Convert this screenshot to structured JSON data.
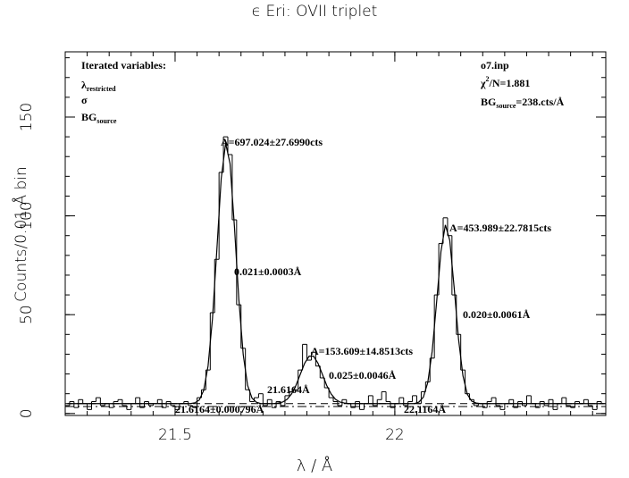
{
  "chart_data": {
    "type": "histogram",
    "title": "ϵ Eri: OVII triplet",
    "x_label": "λ / Å",
    "y_label": "Counts/0.01 Å bin",
    "bins": [
      21.25,
      21.26,
      21.27,
      21.28,
      21.29,
      21.3,
      21.31,
      21.32,
      21.33,
      21.34,
      21.35,
      21.36,
      21.37,
      21.38,
      21.39,
      21.4,
      21.41,
      21.42,
      21.43,
      21.44,
      21.45,
      21.46,
      21.47,
      21.48,
      21.49,
      21.5,
      21.51,
      21.52,
      21.53,
      21.54,
      21.55,
      21.56,
      21.57,
      21.58,
      21.59,
      21.6,
      21.61,
      21.62,
      21.63,
      21.64,
      21.65,
      21.66,
      21.67,
      21.68,
      21.69,
      21.7,
      21.71,
      21.72,
      21.73,
      21.74,
      21.75,
      21.76,
      21.77,
      21.78,
      21.79,
      21.8,
      21.81,
      21.82,
      21.83,
      21.84,
      21.85,
      21.86,
      21.87,
      21.88,
      21.89,
      21.9,
      21.91,
      21.92,
      21.93,
      21.94,
      21.95,
      21.96,
      21.97,
      21.98,
      21.99,
      22,
      22.01,
      22.02,
      22.03,
      22.04,
      22.05,
      22.06,
      22.07,
      22.08,
      22.09,
      22.1,
      22.11,
      22.12,
      22.13,
      22.14,
      22.15,
      22.16,
      22.17,
      22.18,
      22.19,
      22.2,
      22.21,
      22.22,
      22.23,
      22.24,
      22.25,
      22.26,
      22.27,
      22.28,
      22.29,
      22.3,
      22.31,
      22.32,
      22.33,
      22.34,
      22.35,
      22.36,
      22.37,
      22.38,
      22.39,
      22.4,
      22.41,
      22.42,
      22.43,
      22.44,
      22.45,
      22.46,
      22.47,
      22.48
    ],
    "counts": [
      4,
      6,
      3,
      7,
      5,
      2,
      6,
      8,
      4,
      5,
      3,
      6,
      7,
      4,
      2,
      5,
      8,
      3,
      6,
      4,
      5,
      7,
      3,
      6,
      4,
      2,
      5,
      6,
      4,
      3,
      8,
      12,
      22,
      51,
      78,
      122,
      140,
      131,
      98,
      55,
      33,
      12,
      6,
      8,
      10,
      4,
      7,
      3,
      6,
      4,
      9,
      11,
      12,
      22,
      35,
      27,
      31,
      24,
      18,
      13,
      8,
      6,
      4,
      7,
      5,
      3,
      6,
      2,
      5,
      9,
      4,
      7,
      11,
      6,
      3,
      5,
      8,
      4,
      6,
      9,
      5,
      11,
      16,
      28,
      60,
      86,
      99,
      90,
      60,
      40,
      22,
      10,
      7,
      4,
      5,
      3,
      6,
      8,
      4,
      2,
      5,
      7,
      3,
      6,
      4,
      9,
      5,
      3,
      6,
      4,
      7,
      2,
      5,
      8,
      4,
      3,
      6,
      5,
      7,
      4,
      2,
      6,
      5
    ],
    "model": [
      5,
      5,
      5,
      5,
      5,
      5,
      5,
      5,
      5,
      5,
      5,
      5,
      5,
      5,
      5,
      5,
      5,
      5,
      5,
      5,
      5,
      5,
      5,
      5,
      5,
      5,
      5,
      5,
      5,
      5.4,
      6.8,
      11.6,
      24,
      47.8,
      82.8,
      119,
      136.7,
      126.5,
      94.7,
      57.9,
      29.8,
      14.2,
      7.8,
      5.7,
      5,
      5,
      5,
      5,
      5.3,
      5.8,
      7.2,
      9.9,
      14.2,
      19.9,
      25.5,
      29,
      29,
      25.5,
      19.9,
      14.2,
      9.9,
      7.2,
      5.8,
      5.3,
      5,
      5,
      5,
      5,
      5,
      5,
      5,
      5,
      5,
      5,
      5,
      5,
      5,
      5,
      5,
      5,
      5.8,
      8.3,
      15.7,
      31.5,
      56.1,
      82,
      95.4,
      87.6,
      63.8,
      37.6,
      19.1,
      9.7,
      6.2,
      5.3,
      5,
      5,
      5,
      5,
      5,
      5,
      5,
      5,
      5,
      5,
      5,
      5,
      5,
      5,
      5,
      5,
      5,
      5,
      5,
      5,
      5,
      5,
      5,
      5,
      5,
      5,
      5,
      5,
      5
    ],
    "color": "#000000",
    "xlim": [
      21.25,
      22.48
    ],
    "ylim": [
      -1,
      183
    ],
    "xticks": [
      21.5,
      22
    ],
    "yticks": [
      0,
      50,
      100,
      150
    ],
    "x_minor_step": 0.05,
    "y_minor_step": 10,
    "background_lines": [
      {
        "value": 5,
        "style": "dashed"
      },
      {
        "value": 3.5,
        "style": "dashdot"
      }
    ],
    "info_left": [
      {
        "text": "Iterated variables:"
      },
      {
        "text": "λ",
        "sub": "restricted"
      },
      {
        "text": "σ"
      },
      {
        "text": "BG",
        "sub": "source"
      }
    ],
    "info_right": [
      {
        "text": "o7.inp"
      },
      {
        "text": "χ",
        "sup": "2",
        "rest": "/N=1.881"
      },
      {
        "text": "BG",
        "sub": "source",
        "rest": "=238.cts/Å"
      }
    ],
    "annotations": [
      "A=697.024±27.6990cts",
      "0.021±0.0003Å",
      "A=153.609±14.8513cts",
      "0.025±0.0046Å",
      "A=453.989±22.7815cts",
      "0.020±0.0061Å",
      "21.6164Å",
      "21.6164±0.000796Å",
      "22.1164Å"
    ]
  }
}
